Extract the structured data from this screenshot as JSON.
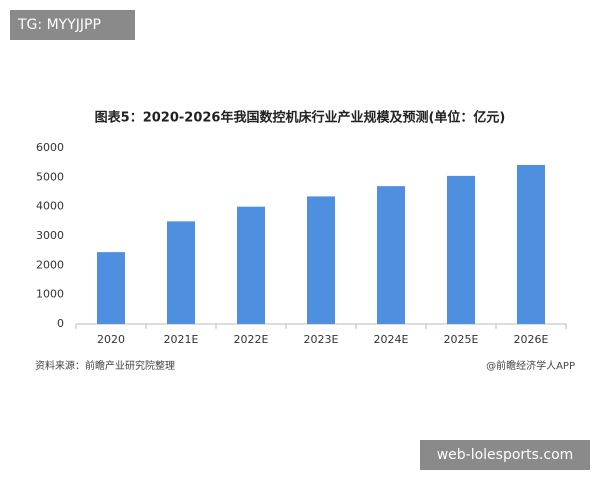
{
  "badge": "TG: MYYJJPP",
  "site": "web-lolesports.com",
  "source": "资料来源：前瞻产业研究院整理",
  "credit": "@前瞻经济学人APP",
  "chart_data": {
    "type": "bar",
    "title": "图表5：2020-2026年我国数控机床行业产业规模及预测(单位：亿元)",
    "categories": [
      "2020",
      "2021E",
      "2022E",
      "2023E",
      "2024E",
      "2025E",
      "2026E"
    ],
    "values": [
      2450,
      3500,
      4000,
      4350,
      4700,
      5050,
      5420
    ],
    "color": "#4f8fe0",
    "ylim": [
      0,
      6000
    ],
    "yticks": [
      0,
      1000,
      2000,
      3000,
      4000,
      5000,
      6000
    ],
    "grid": false
  }
}
